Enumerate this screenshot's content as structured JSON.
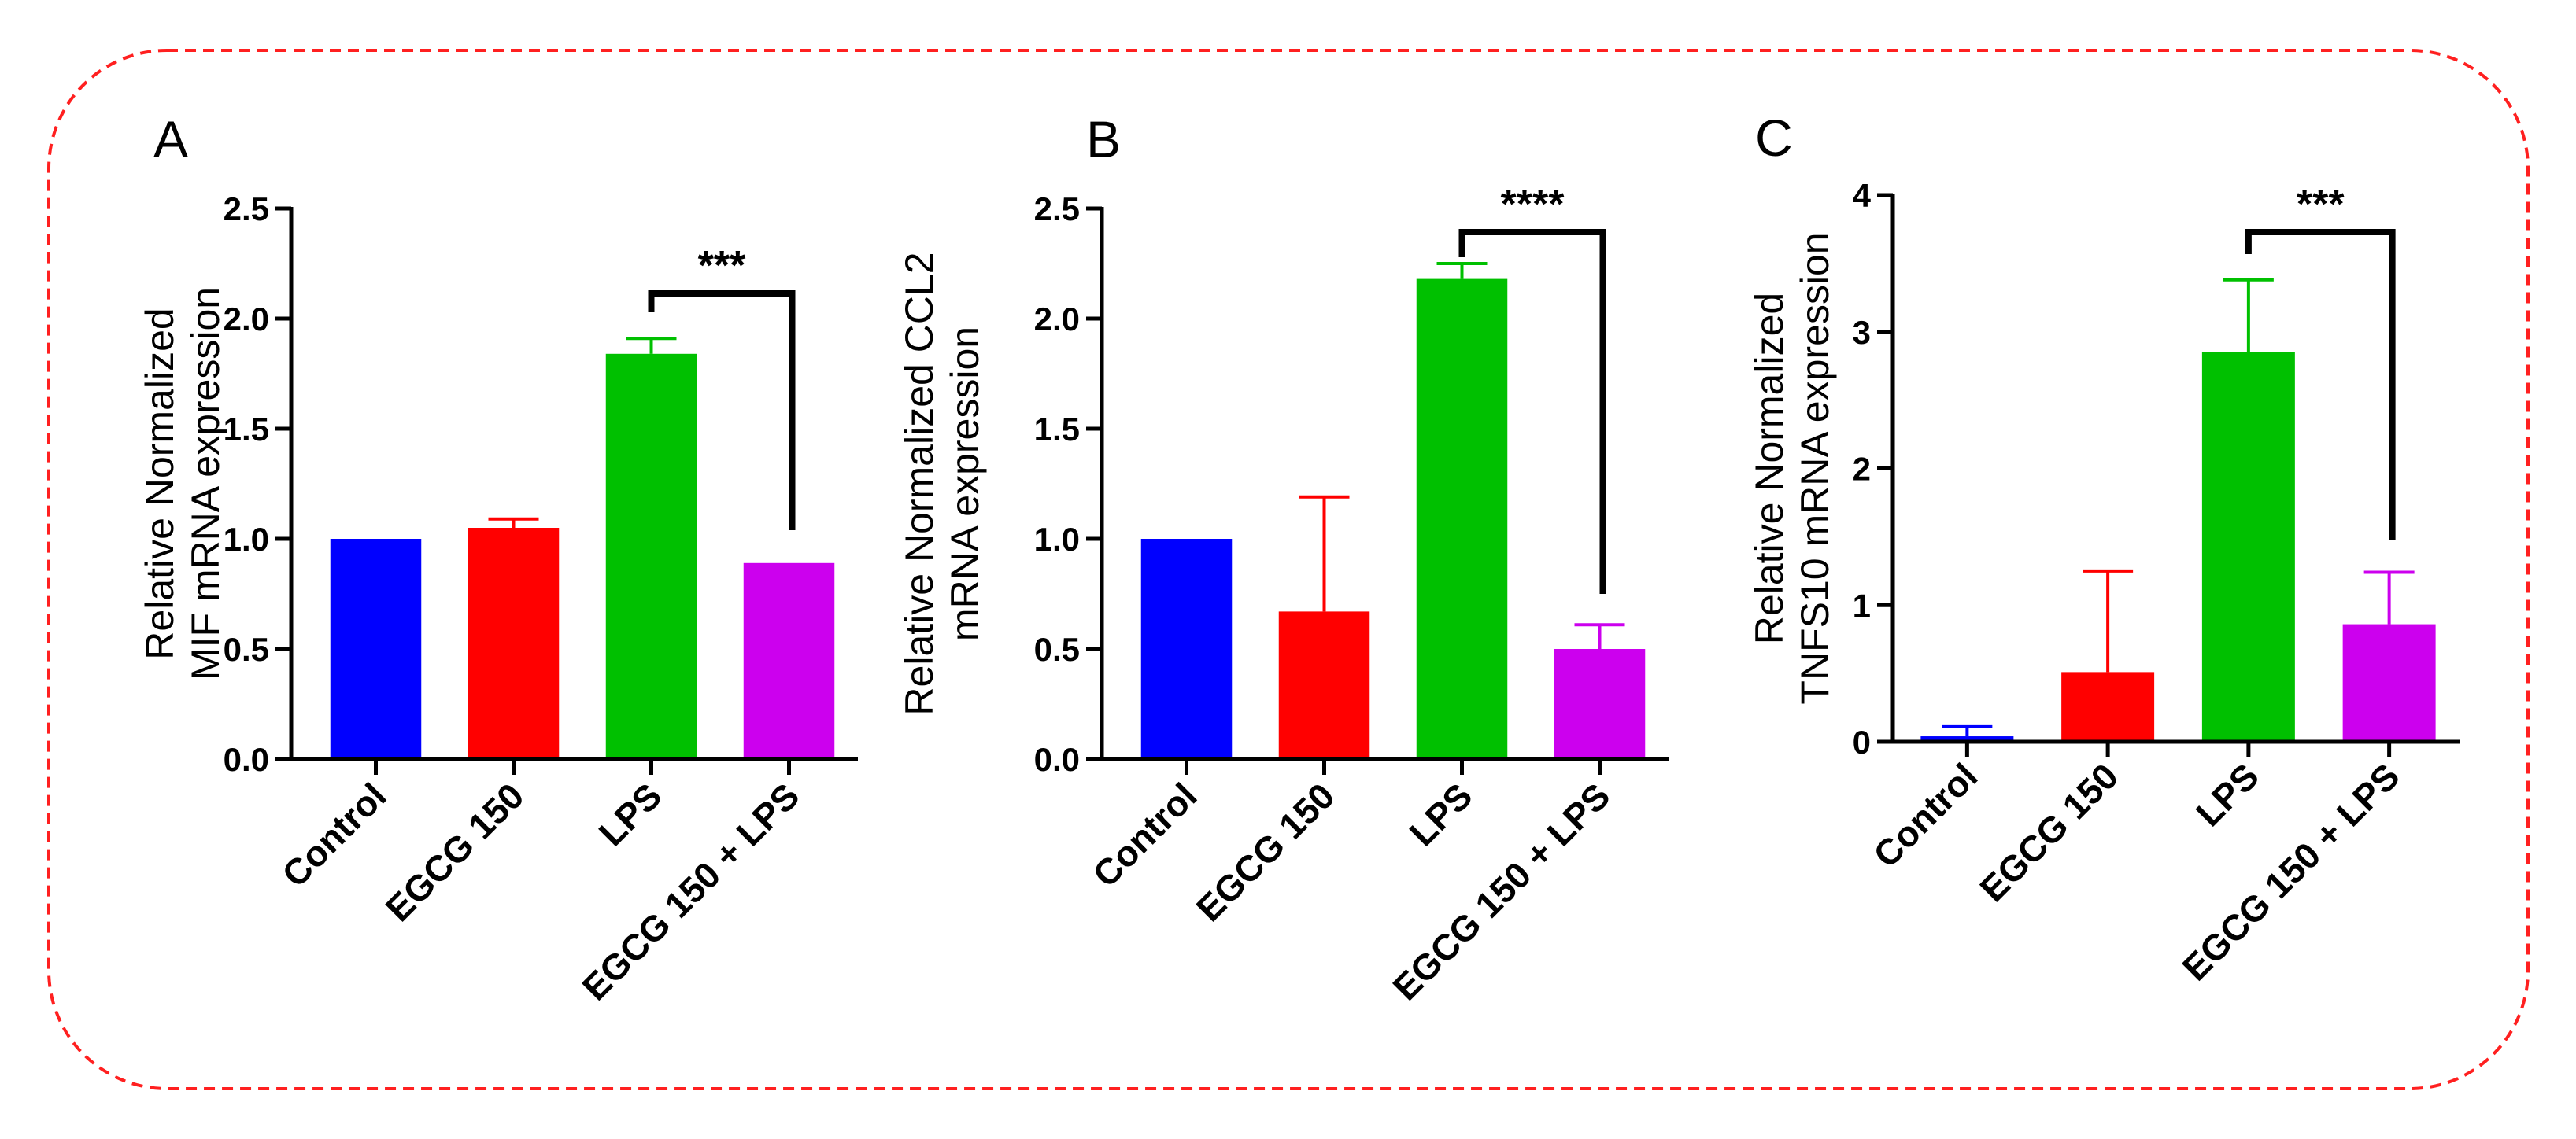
{
  "chart_data": [
    {
      "panel": "A",
      "type": "bar",
      "categories": [
        "Control",
        "EGCG 150",
        "LPS",
        "EGCG 150 + LPS"
      ],
      "values": [
        1.0,
        1.05,
        1.84,
        0.89
      ],
      "errors": [
        0.0,
        0.04,
        0.07,
        0.0
      ],
      "colors": [
        "#0000ff",
        "#ff0000",
        "#00c000",
        "#cc00ee"
      ],
      "ylabel": [
        "Relative Normalized",
        "MIF mRNA expression"
      ],
      "ylim": [
        0,
        2.5
      ],
      "yticks": [
        "0.0",
        "0.5",
        "1.0",
        "1.5",
        "2.0",
        "2.5"
      ],
      "significance": {
        "from": "LPS",
        "to": "EGCG 150 + LPS",
        "label": "***"
      }
    },
    {
      "panel": "B",
      "type": "bar",
      "categories": [
        "Control",
        "EGCG 150",
        "LPS",
        "EGCG 150 + LPS"
      ],
      "values": [
        1.0,
        0.67,
        2.18,
        0.5
      ],
      "errors": [
        0.0,
        0.52,
        0.07,
        0.11
      ],
      "colors": [
        "#0000ff",
        "#ff0000",
        "#00c000",
        "#cc00ee"
      ],
      "ylabel": [
        "Relative Normalized CCL2",
        "mRNA expression"
      ],
      "ylim": [
        0,
        2.5
      ],
      "yticks": [
        "0.0",
        "0.5",
        "1.0",
        "1.5",
        "2.0",
        "2.5"
      ],
      "significance": {
        "from": "LPS",
        "to": "EGCG 150 + LPS",
        "label": "****"
      }
    },
    {
      "panel": "C",
      "type": "bar",
      "categories": [
        "Control",
        "EGCG 150",
        "LPS",
        "EGCG 150 + LPS"
      ],
      "values": [
        0.04,
        0.51,
        2.85,
        0.86
      ],
      "errors": [
        0.07,
        0.74,
        0.53,
        0.38
      ],
      "colors": [
        "#0000ff",
        "#ff0000",
        "#00c000",
        "#cc00ee"
      ],
      "ylabel": [
        "Relative Normalized",
        "TNFS10 mRNA expression"
      ],
      "ylim": [
        0,
        4
      ],
      "yticks": [
        "0",
        "1",
        "2",
        "3",
        "4"
      ],
      "significance": {
        "from": "LPS",
        "to": "EGCG 150 + LPS",
        "label": "***"
      }
    }
  ]
}
